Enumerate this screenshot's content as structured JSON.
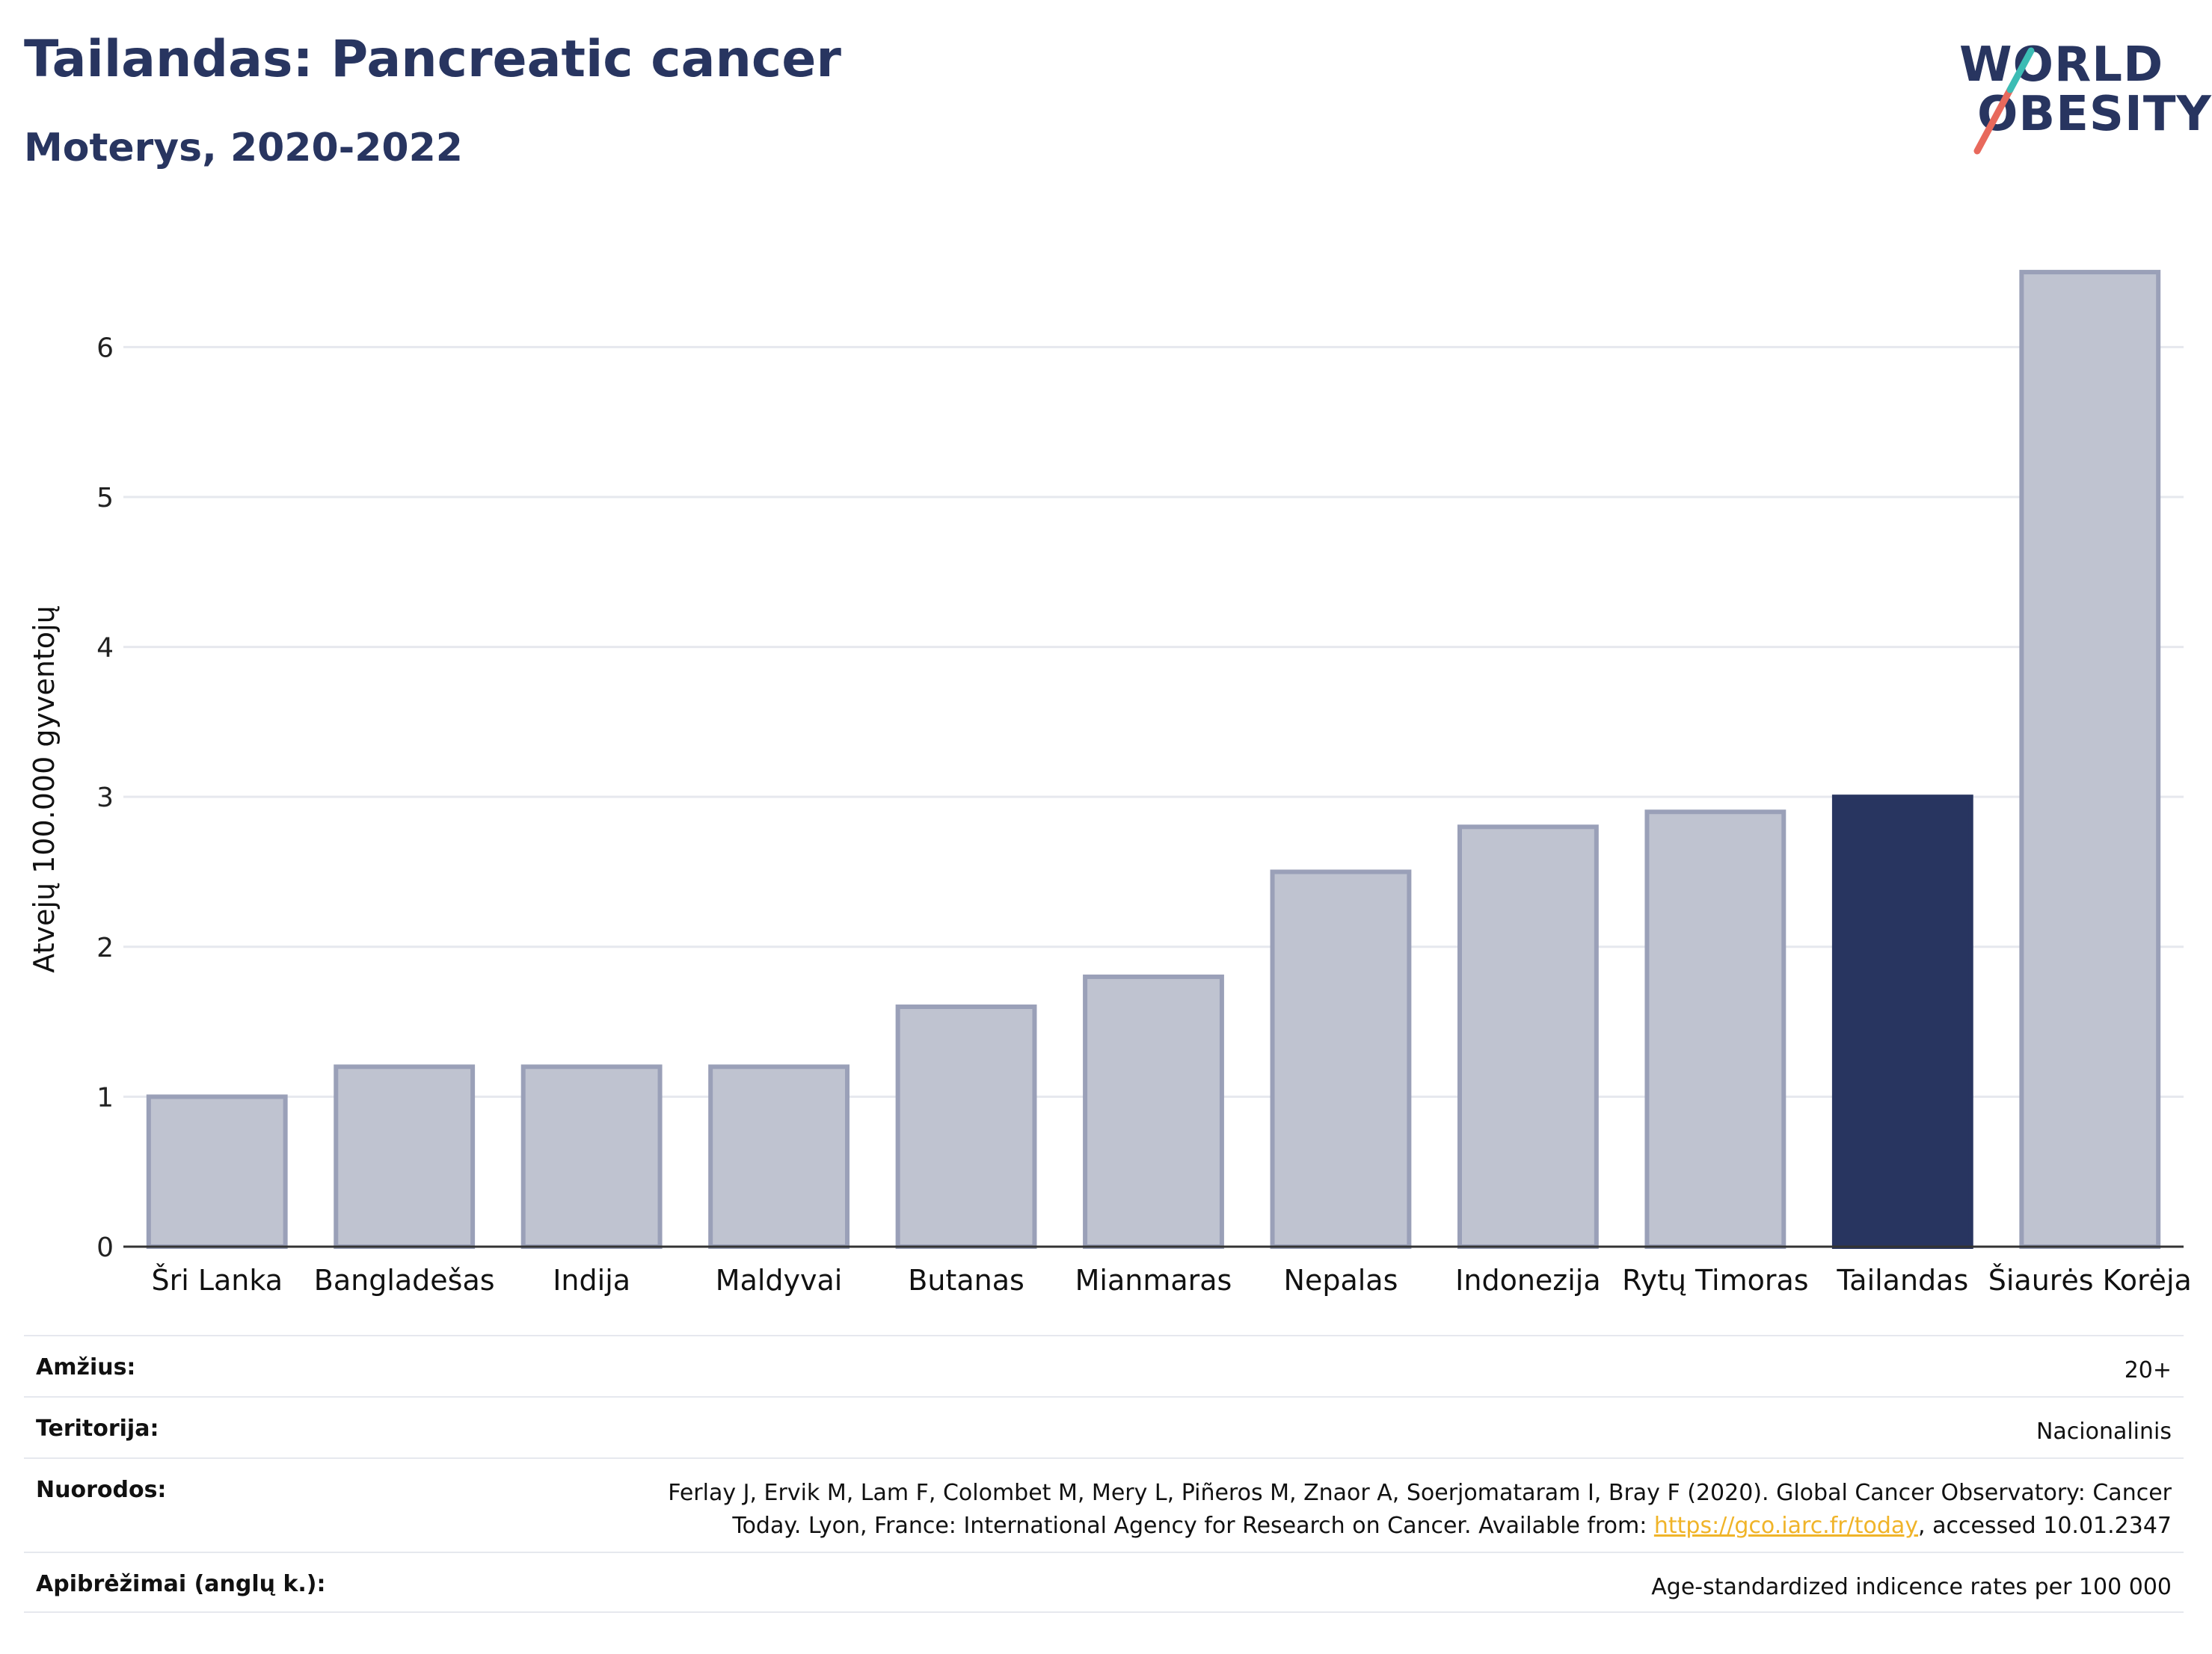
{
  "header": {
    "title": "Tailandas: Pancreatic cancer",
    "subtitle": "Moterys, 2020-2022"
  },
  "logo": {
    "line1": "WORLD",
    "line2": "OBESITY",
    "colors": [
      "#e8695c",
      "#3cbcb4"
    ]
  },
  "colors": {
    "highlight": "#283560",
    "bar_fill": "#bfc3d0",
    "bar_stroke": "#9aa0b8",
    "grid": "#e6e8ee"
  },
  "chart_data": {
    "type": "bar",
    "title": "Tailandas: Pancreatic cancer",
    "subtitle": "Moterys, 2020-2022",
    "ylabel": "Atvejų 100.000 gyventojų",
    "xlabel": "",
    "ylim": [
      0,
      6.6
    ],
    "yticks": [
      0,
      1,
      2,
      3,
      4,
      5,
      6
    ],
    "grid": true,
    "categories": [
      "Šri Lanka",
      "Bangladešas",
      "Indija",
      "Maldyvai",
      "Butanas",
      "Mianmaras",
      "Nepalas",
      "Indonezija",
      "Rytų Timoras",
      "Tailandas",
      "Šiaurės Korėja"
    ],
    "values": [
      1.0,
      1.2,
      1.2,
      1.2,
      1.6,
      1.8,
      2.5,
      2.8,
      2.9,
      3.0,
      6.5
    ],
    "highlight": "Tailandas"
  },
  "table": [
    {
      "key": "Amžius:",
      "value": "20+"
    },
    {
      "key": "Teritorija:",
      "value": "Nacionalinis"
    },
    {
      "key": "Nuorodos:",
      "value_line1": "Ferlay J, Ervik M, Lam F, Colombet M, Mery L, Piñeros M, Znaor A, Soerjomataram I, Bray F (2020). Global Cancer Observatory: Cancer",
      "value_pre": "Today. Lyon, France: International Agency for Research on Cancer. Available from: ",
      "link": "https://gco.iarc.fr/today",
      "value_post": ", accessed 10.01.2347"
    },
    {
      "key": "Apibrėžimai (anglų k.):",
      "value": "Age-standardized indicence rates per 100 000"
    }
  ]
}
